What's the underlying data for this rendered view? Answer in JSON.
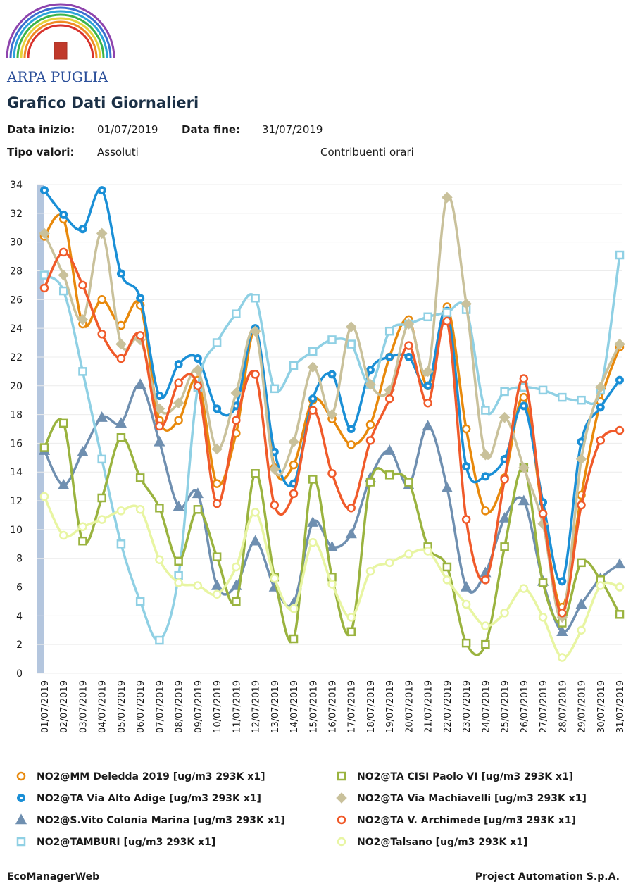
{
  "header": {
    "logo_text": "ARPA PUGLIA",
    "title": "Grafico Dati Giornalieri"
  },
  "fields": {
    "start_label": "Data inizio:",
    "start_value": "01/07/2019",
    "end_label": "Data fine:",
    "end_value": "31/07/2019",
    "type_label": "Tipo valori:",
    "type_value": "Assoluti",
    "note": "Contribuenti orari"
  },
  "chart_data": {
    "type": "line",
    "categories": [
      "01/07/2019",
      "02/07/2019",
      "03/07/2019",
      "04/07/2019",
      "05/07/2019",
      "06/07/2019",
      "07/07/2019",
      "08/07/2019",
      "09/07/2019",
      "10/07/2019",
      "11/07/2019",
      "12/07/2019",
      "13/07/2019",
      "14/07/2019",
      "15/07/2019",
      "16/07/2019",
      "17/07/2019",
      "18/07/2019",
      "19/07/2019",
      "20/07/2019",
      "21/07/2019",
      "22/07/2019",
      "23/07/2019",
      "24/07/2019",
      "25/07/2019",
      "26/07/2019",
      "27/07/2019",
      "28/07/2019",
      "29/07/2019",
      "30/07/2019",
      "31/07/2019"
    ],
    "ylim": [
      0,
      34
    ],
    "yticks": [
      0,
      2,
      4,
      6,
      8,
      10,
      12,
      14,
      16,
      18,
      20,
      22,
      24,
      26,
      28,
      30,
      32,
      34
    ],
    "grid": true,
    "series": [
      {
        "name": "NO2@MM Deledda 2019 [ug/m3 293K x1]",
        "color": "#e8890c",
        "marker": "circle",
        "values": [
          30.4,
          31.6,
          24.3,
          26,
          24.2,
          25.6,
          17.6,
          17.6,
          20.4,
          13.2,
          16.7,
          23.8,
          14.3,
          14.5,
          19,
          17.7,
          15.9,
          17.3,
          22,
          24.6,
          20,
          25.5,
          17,
          11.3,
          13.6,
          19.2,
          11.1,
          4.6,
          12.4,
          18.9,
          22.7
        ]
      },
      {
        "name": "NO2@TA Via Alto Adige [ug/m3 293K x1]",
        "color": "#1a8fd6",
        "marker": "dot",
        "values": [
          33.6,
          31.9,
          30.9,
          33.6,
          27.8,
          26.1,
          19.3,
          21.5,
          21.9,
          18.4,
          18.6,
          24,
          15.4,
          13.2,
          19.1,
          20.8,
          17,
          21.1,
          22,
          22,
          20,
          25.2,
          14.4,
          13.7,
          14.9,
          18.6,
          11.9,
          6.4,
          16.1,
          18.5,
          20.4
        ]
      },
      {
        "name": "NO2@S.Vito Colonia Marina [ug/m3 293K x1]",
        "color": "#6f8fb0",
        "marker": "triangle",
        "values": [
          15.5,
          13.1,
          15.4,
          17.8,
          17.4,
          20.1,
          16.1,
          11.6,
          12.5,
          6.1,
          6.1,
          9.2,
          6,
          4.9,
          10.5,
          8.8,
          9.7,
          13.6,
          15.5,
          13.1,
          17.2,
          12.9,
          6,
          7,
          10.8,
          12,
          6.4,
          2.9,
          4.8,
          6.6,
          7.6
        ]
      },
      {
        "name": "NO2@TAMBURI [ug/m3 293K x1]",
        "color": "#8fd0e4",
        "marker": "square",
        "values": [
          27.7,
          26.6,
          21,
          14.9,
          9,
          5,
          2.3,
          6.8,
          19.9,
          23,
          25,
          26.1,
          19.8,
          21.4,
          22.4,
          23.2,
          22.9,
          20.1,
          23.8,
          24.3,
          24.8,
          25.1,
          25.3,
          18.3,
          19.6,
          19.9,
          19.7,
          19.2,
          19,
          19.7,
          29.1
        ]
      },
      {
        "name": "NO2@TA CISI Paolo VI [ug/m3 293K x1]",
        "color": "#9ab33f",
        "marker": "square",
        "values": [
          15.7,
          17.4,
          9.2,
          12.2,
          16.4,
          13.6,
          11.5,
          7.8,
          11.4,
          8.1,
          5,
          13.9,
          6.7,
          2.4,
          13.5,
          6.7,
          2.9,
          13.3,
          13.8,
          13.3,
          8.8,
          7.4,
          2.1,
          2,
          8.8,
          14.3,
          6.3,
          3.5,
          7.7,
          6.5,
          4.1
        ]
      },
      {
        "name": "NO2@TA Via Machiavelli [ug/m3 293K x1]",
        "color": "#c9c19b",
        "marker": "diamond",
        "values": [
          30.6,
          27.7,
          24.6,
          30.6,
          22.9,
          23.2,
          18.4,
          18.8,
          21.1,
          15.6,
          19.5,
          23.8,
          14.2,
          16.1,
          21.3,
          18,
          24.1,
          20.1,
          19.7,
          24.3,
          21,
          33.1,
          25.7,
          15.2,
          17.8,
          14.3,
          10.4,
          3.9,
          14.9,
          19.9,
          22.9
        ]
      },
      {
        "name": "NO2@TA V. Archimede [ug/m3 293K x1]",
        "color": "#f05a2a",
        "marker": "circle",
        "values": [
          26.8,
          29.3,
          27,
          23.6,
          21.9,
          23.5,
          17.2,
          20.2,
          20,
          11.8,
          17.6,
          20.8,
          11.7,
          12.5,
          18.3,
          13.9,
          11.5,
          16.2,
          19.1,
          22.8,
          18.8,
          24.5,
          10.7,
          6.5,
          13.5,
          20.5,
          11.1,
          4.2,
          11.7,
          16.2,
          16.9
        ]
      },
      {
        "name": "NO2@Talsano [ug/m3 293K x1]",
        "color": "#e8f5a2",
        "marker": "circle",
        "values": [
          12.3,
          9.6,
          10.2,
          10.7,
          11.3,
          11.4,
          7.9,
          6.3,
          6.1,
          5.5,
          7.4,
          11.2,
          6.6,
          4.5,
          9.1,
          6.2,
          3.9,
          7.1,
          7.7,
          8.3,
          8.5,
          6.5,
          4.8,
          3.3,
          4.2,
          5.9,
          3.9,
          1.1,
          3,
          6.1,
          6
        ]
      }
    ]
  },
  "footer": {
    "left": "EcoManagerWeb",
    "right": "Project Automation S.p.A."
  }
}
